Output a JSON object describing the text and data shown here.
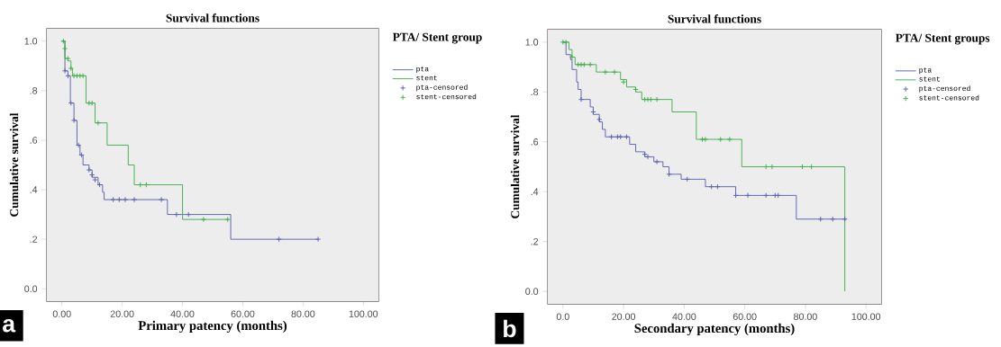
{
  "chart_data": [
    {
      "type": "step",
      "title": "Survival functions",
      "xlabel": "Primary patency (months)",
      "ylabel": "Cumulative survival",
      "legend_title": "PTA/ Stent group",
      "legend": "right",
      "xlim": [
        -5,
        105
      ],
      "ylim": [
        -0.05,
        1.05
      ],
      "xticks": [
        {
          "value": 0,
          "label": "0.00"
        },
        {
          "value": 20,
          "label": "20.00"
        },
        {
          "value": 40,
          "label": "40.00"
        },
        {
          "value": 60,
          "label": "60.00"
        },
        {
          "value": 80,
          "label": "80.00"
        },
        {
          "value": 100,
          "label": "100.00"
        }
      ],
      "yticks": [
        {
          "value": 0,
          "label": "0.0"
        },
        {
          "value": 0.2,
          "label": ".2"
        },
        {
          "value": 0.4,
          "label": ".4"
        },
        {
          "value": 0.6,
          "label": ".6"
        },
        {
          "value": 0.8,
          "label": ".8"
        },
        {
          "value": 1,
          "label": "1.0"
        }
      ],
      "annotations": [
        "a"
      ],
      "series": [
        {
          "name": "pta",
          "color": "#5a5fb0",
          "x": [
            0,
            1,
            2,
            2.8,
            4,
            5,
            6,
            7,
            9,
            10,
            12,
            13.5,
            14,
            35,
            56,
            85
          ],
          "values": [
            1.0,
            0.88,
            0.86,
            0.75,
            0.68,
            0.58,
            0.54,
            0.5,
            0.48,
            0.45,
            0.42,
            0.39,
            0.36,
            0.3,
            0.2,
            0.2
          ]
        },
        {
          "name": "stent",
          "color": "#3fae49",
          "x": [
            0,
            1,
            2,
            3,
            3.5,
            8,
            11,
            15,
            22,
            24,
            40,
            55.5
          ],
          "values": [
            1.0,
            0.93,
            0.92,
            0.89,
            0.86,
            0.75,
            0.67,
            0.58,
            0.5,
            0.42,
            0.28,
            0.28
          ]
        },
        {
          "name": "pta-censored",
          "type": "scatter",
          "marker": "cross",
          "color": "#5a5fb0",
          "x": [
            1,
            2,
            3,
            4,
            5.5,
            6.5,
            9,
            10,
            11,
            12.5,
            17,
            19,
            21,
            24,
            33,
            38,
            42,
            72,
            85
          ],
          "values": [
            0.88,
            0.86,
            0.75,
            0.68,
            0.58,
            0.54,
            0.48,
            0.46,
            0.44,
            0.42,
            0.36,
            0.36,
            0.36,
            0.36,
            0.36,
            0.3,
            0.3,
            0.2,
            0.2
          ]
        },
        {
          "name": "stent-censored",
          "type": "scatter",
          "marker": "cross",
          "color": "#3fae49",
          "x": [
            0.5,
            1,
            2,
            3,
            4,
            5,
            6,
            7,
            9,
            10,
            12,
            26,
            28,
            47,
            55
          ],
          "values": [
            1.0,
            0.97,
            0.93,
            0.89,
            0.86,
            0.86,
            0.86,
            0.86,
            0.75,
            0.75,
            0.67,
            0.42,
            0.42,
            0.28,
            0.28
          ]
        }
      ]
    },
    {
      "type": "step",
      "title": "Survival functions",
      "xlabel": "Secondary patency (months)",
      "ylabel": "Cumulative survival",
      "legend_title": "PTA/ Stent groups",
      "legend": "right",
      "xlim": [
        -5,
        105
      ],
      "ylim": [
        -0.05,
        1.05
      ],
      "xticks": [
        {
          "value": 0,
          "label": "0.0"
        },
        {
          "value": 20,
          "label": "20.00"
        },
        {
          "value": 40,
          "label": "40.00"
        },
        {
          "value": 60,
          "label": "60.00"
        },
        {
          "value": 80,
          "label": "80.00"
        },
        {
          "value": 100,
          "label": "100.00"
        }
      ],
      "yticks": [
        {
          "value": 0,
          "label": "0.0"
        },
        {
          "value": 0.2,
          "label": ".2"
        },
        {
          "value": 0.4,
          "label": ".4"
        },
        {
          "value": 0.6,
          "label": ".6"
        },
        {
          "value": 0.8,
          "label": ".8"
        },
        {
          "value": 1,
          "label": "1.0"
        }
      ],
      "annotations": [
        "b"
      ],
      "series": [
        {
          "name": "pta",
          "color": "#5a5fb0",
          "x": [
            0,
            1,
            2.5,
            3,
            4.5,
            5,
            6,
            9,
            10,
            12,
            13,
            14,
            22,
            24,
            27,
            30,
            33,
            35,
            39,
            47,
            57,
            77,
            93.5
          ],
          "values": [
            1.0,
            0.95,
            0.93,
            0.89,
            0.84,
            0.81,
            0.77,
            0.74,
            0.71,
            0.68,
            0.65,
            0.62,
            0.59,
            0.56,
            0.54,
            0.52,
            0.5,
            0.47,
            0.45,
            0.42,
            0.385,
            0.29,
            0.29
          ]
        },
        {
          "name": "stent",
          "color": "#3fae49",
          "x": [
            0,
            2,
            3,
            4,
            11,
            19,
            21,
            24,
            26,
            36,
            44,
            59,
            93,
            93
          ],
          "values": [
            1.0,
            0.97,
            0.94,
            0.91,
            0.88,
            0.85,
            0.82,
            0.8,
            0.77,
            0.72,
            0.61,
            0.5,
            0.5,
            0.0
          ]
        },
        {
          "name": "pta-censored",
          "type": "scatter",
          "marker": "cross",
          "color": "#5a5fb0",
          "x": [
            6,
            10,
            12,
            16,
            18,
            19,
            21,
            27,
            28,
            31,
            35,
            41,
            49,
            51,
            57,
            61,
            67,
            70,
            71,
            85,
            89,
            93
          ],
          "values": [
            0.77,
            0.72,
            0.69,
            0.62,
            0.62,
            0.62,
            0.62,
            0.55,
            0.54,
            0.52,
            0.47,
            0.45,
            0.42,
            0.42,
            0.385,
            0.385,
            0.385,
            0.385,
            0.385,
            0.29,
            0.29,
            0.29
          ]
        },
        {
          "name": "stent-censored",
          "type": "scatter",
          "marker": "cross",
          "color": "#3fae49",
          "x": [
            0,
            1,
            3,
            5,
            6,
            7,
            9,
            14,
            17,
            20,
            24,
            27,
            28,
            29,
            31,
            46,
            47,
            52,
            55,
            67,
            69,
            79,
            82
          ],
          "values": [
            1.0,
            1.0,
            0.94,
            0.91,
            0.91,
            0.91,
            0.91,
            0.88,
            0.88,
            0.84,
            0.81,
            0.77,
            0.77,
            0.77,
            0.77,
            0.61,
            0.61,
            0.61,
            0.61,
            0.5,
            0.5,
            0.5,
            0.5
          ]
        }
      ]
    }
  ]
}
